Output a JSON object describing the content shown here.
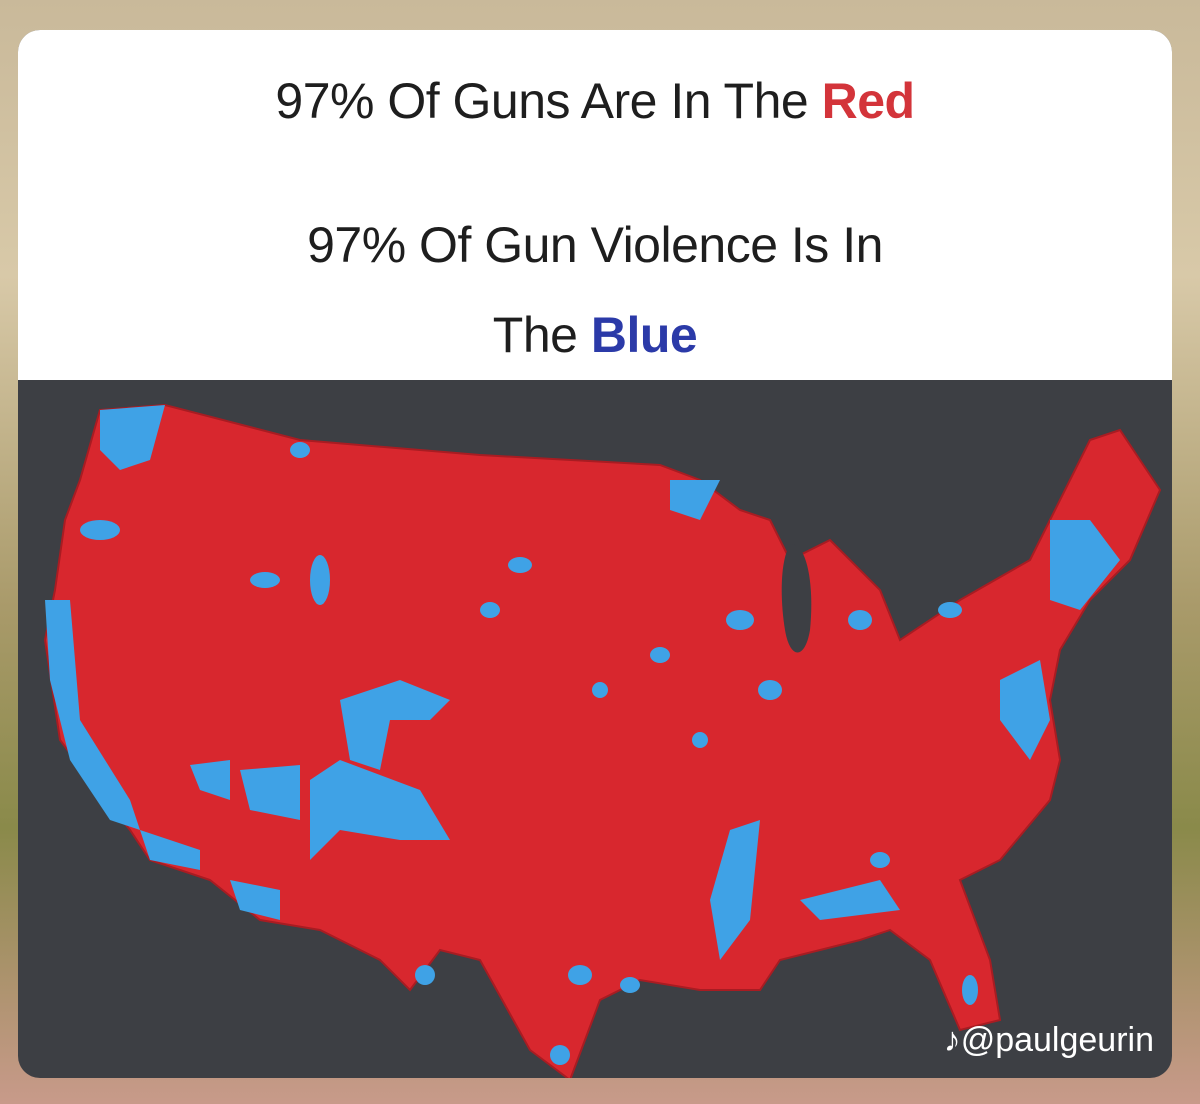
{
  "header": {
    "line1": {
      "text": "97% Of Guns Are In The",
      "highlight": "Red"
    },
    "line2": {
      "text": "97% Of Gun Violence Is In",
      "text2": "The",
      "highlight": "Blue"
    }
  },
  "watermark": "@paulgeurin"
}
